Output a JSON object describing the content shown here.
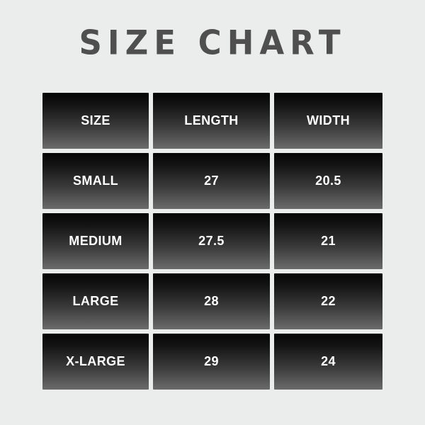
{
  "page": {
    "background_color": "#ebecec",
    "title": "SIZE CHART",
    "title_color": "#4f4f4f"
  },
  "table": {
    "cell_gradient_top": "#050505",
    "cell_gradient_bottom": "#6b6b6b",
    "cell_text_color": "#ffffff",
    "columns": [
      "SIZE",
      "LENGTH",
      "WIDTH"
    ],
    "rows": [
      {
        "size": "SMALL",
        "length": "27",
        "width": "20.5"
      },
      {
        "size": "MEDIUM",
        "length": "27.5",
        "width": "21"
      },
      {
        "size": "LARGE",
        "length": "28",
        "width": "22"
      },
      {
        "size": "X-LARGE",
        "length": "29",
        "width": "24"
      }
    ]
  },
  "chart_data": {
    "type": "table",
    "title": "SIZE CHART",
    "columns": [
      "SIZE",
      "LENGTH",
      "WIDTH"
    ],
    "rows": [
      [
        "SMALL",
        27,
        20.5
      ],
      [
        "MEDIUM",
        27.5,
        21
      ],
      [
        "LARGE",
        28,
        22
      ],
      [
        "X-LARGE",
        29,
        24
      ]
    ]
  }
}
